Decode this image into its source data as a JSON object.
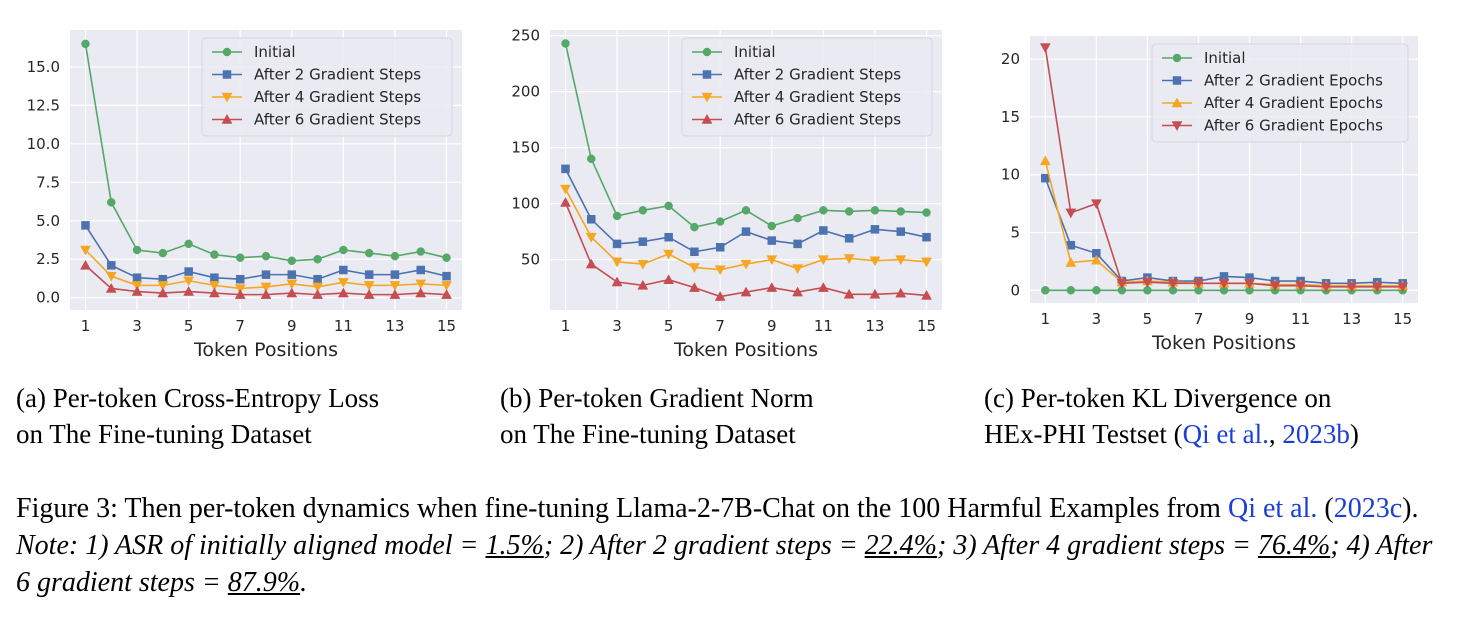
{
  "chart_data": [
    {
      "type": "line",
      "xlabel": "Token Positions",
      "x": [
        1,
        2,
        3,
        4,
        5,
        6,
        7,
        8,
        9,
        10,
        11,
        12,
        13,
        14,
        15
      ],
      "xticks": [
        1,
        3,
        5,
        7,
        9,
        11,
        13,
        15
      ],
      "yticks": [
        0.0,
        2.5,
        5.0,
        7.5,
        10.0,
        12.5,
        15.0
      ],
      "ytick_labels": [
        "0.0",
        "2.5",
        "5.0",
        "7.5",
        "10.0",
        "12.5",
        "15.0"
      ],
      "xlim": [
        0.4,
        15.6
      ],
      "ylim": [
        -0.8,
        17.4
      ],
      "grid": true,
      "legend_position": "top-right",
      "series": [
        {
          "name": "Initial",
          "color": "#55a868",
          "marker": "circle",
          "values": [
            16.5,
            6.2,
            3.1,
            2.9,
            3.5,
            2.8,
            2.6,
            2.7,
            2.4,
            2.5,
            3.1,
            2.9,
            2.7,
            3.0,
            2.6
          ]
        },
        {
          "name": "After 2 Gradient Steps",
          "color": "#4c72b0",
          "marker": "square",
          "values": [
            4.7,
            2.1,
            1.3,
            1.2,
            1.7,
            1.3,
            1.2,
            1.5,
            1.5,
            1.2,
            1.8,
            1.5,
            1.5,
            1.8,
            1.4
          ]
        },
        {
          "name": "After 4 Gradient Steps",
          "color": "#f5a623",
          "marker": "triangle-down",
          "values": [
            3.1,
            1.4,
            0.8,
            0.8,
            1.1,
            0.8,
            0.6,
            0.7,
            0.9,
            0.7,
            1.0,
            0.8,
            0.8,
            0.9,
            0.8
          ]
        },
        {
          "name": "After 6 Gradient Steps",
          "color": "#c44e52",
          "marker": "triangle-up",
          "values": [
            2.1,
            0.6,
            0.4,
            0.3,
            0.4,
            0.3,
            0.2,
            0.2,
            0.3,
            0.2,
            0.3,
            0.2,
            0.2,
            0.3,
            0.2
          ]
        }
      ]
    },
    {
      "type": "line",
      "xlabel": "Token Positions",
      "x": [
        1,
        2,
        3,
        4,
        5,
        6,
        7,
        8,
        9,
        10,
        11,
        12,
        13,
        14,
        15
      ],
      "xticks": [
        1,
        3,
        5,
        7,
        9,
        11,
        13,
        15
      ],
      "yticks": [
        50,
        100,
        150,
        200,
        250
      ],
      "ytick_labels": [
        "50",
        "100",
        "150",
        "200",
        "250"
      ],
      "xlim": [
        0.4,
        15.6
      ],
      "ylim": [
        5,
        255
      ],
      "grid": true,
      "legend_position": "top-right",
      "series": [
        {
          "name": "Initial",
          "color": "#55a868",
          "marker": "circle",
          "values": [
            243,
            140,
            89,
            94,
            98,
            79,
            84,
            94,
            80,
            87,
            94,
            93,
            94,
            93,
            92
          ]
        },
        {
          "name": "After 2 Gradient Steps",
          "color": "#4c72b0",
          "marker": "square",
          "values": [
            131,
            86,
            64,
            66,
            70,
            57,
            61,
            75,
            67,
            64,
            76,
            69,
            77,
            75,
            70
          ]
        },
        {
          "name": "After 4 Gradient Steps",
          "color": "#f5a623",
          "marker": "triangle-down",
          "values": [
            113,
            70,
            48,
            46,
            55,
            43,
            41,
            46,
            50,
            42,
            50,
            51,
            49,
            50,
            48
          ]
        },
        {
          "name": "After 6 Gradient Steps",
          "color": "#c44e52",
          "marker": "triangle-up",
          "values": [
            101,
            46,
            30,
            27,
            32,
            25,
            17,
            21,
            25,
            21,
            25,
            19,
            19,
            20,
            18
          ]
        }
      ]
    },
    {
      "type": "line",
      "xlabel": "Token Positions",
      "x": [
        1,
        2,
        3,
        4,
        5,
        6,
        7,
        8,
        9,
        10,
        11,
        12,
        13,
        14,
        15
      ],
      "xticks": [
        1,
        3,
        5,
        7,
        9,
        11,
        13,
        15
      ],
      "yticks": [
        0,
        5,
        10,
        15,
        20
      ],
      "ytick_labels": [
        "0",
        "5",
        "10",
        "15",
        "20"
      ],
      "xlim": [
        0.4,
        15.6
      ],
      "ylim": [
        -1.1,
        22.0
      ],
      "grid": true,
      "legend_position": "top-right",
      "series": [
        {
          "name": "Initial",
          "color": "#55a868",
          "marker": "circle",
          "values": [
            0,
            0,
            0,
            0,
            0,
            0,
            0,
            0,
            0,
            0,
            0,
            0,
            0,
            0,
            0
          ]
        },
        {
          "name": "After 2 Gradient Epochs",
          "color": "#4c72b0",
          "marker": "square",
          "values": [
            9.7,
            3.9,
            3.2,
            0.8,
            1.1,
            0.8,
            0.8,
            1.2,
            1.1,
            0.8,
            0.8,
            0.6,
            0.6,
            0.7,
            0.6
          ]
        },
        {
          "name": "After 4 Gradient Epochs",
          "color": "#f5a623",
          "marker": "triangle-up",
          "values": [
            11.2,
            2.4,
            2.6,
            0.7,
            0.8,
            0.7,
            0.6,
            0.6,
            0.6,
            0.5,
            0.5,
            0.4,
            0.4,
            0.4,
            0.4
          ]
        },
        {
          "name": "After 6 Gradient Epochs",
          "color": "#c44e52",
          "marker": "triangle-down",
          "values": [
            21.0,
            6.7,
            7.5,
            0.6,
            0.7,
            0.6,
            0.6,
            0.6,
            0.6,
            0.4,
            0.4,
            0.3,
            0.3,
            0.3,
            0.3
          ]
        }
      ]
    }
  ],
  "captions": [
    {
      "line1": "(a) Per-token Cross-Entropy Loss",
      "line2": "on The Fine-tuning Dataset"
    },
    {
      "line1": "(b) Per-token Gradient Norm",
      "line2": "on The Fine-tuning Dataset"
    },
    {
      "line1": "(c) Per-token KL Divergence on",
      "line2_pre": "HEx-PHI Testset (",
      "line2_cite_a": "Qi et al.",
      "line2_sep": ", ",
      "line2_cite_b": "2023b",
      "line2_post": ")"
    }
  ],
  "figure_caption": {
    "p1": "Figure 3: Then per-token dynamics when fine-tuning Llama-2-7B-Chat on the 100 Harmful Examples from ",
    "cite_a": "Qi et al.",
    "p2": " (",
    "cite_b": "2023c",
    "p3": "). ",
    "n1": "Note: 1) ASR of initially aligned model = ",
    "v1": "1.5%",
    "n2": "; 2) After 2 gradient steps = ",
    "v2": "22.4%",
    "n3": "; 3) After 4 gradient steps = ",
    "v3": "76.4%",
    "n4": "; 4) After 6 gradient steps = ",
    "v4": "87.9%",
    "n5": "."
  }
}
